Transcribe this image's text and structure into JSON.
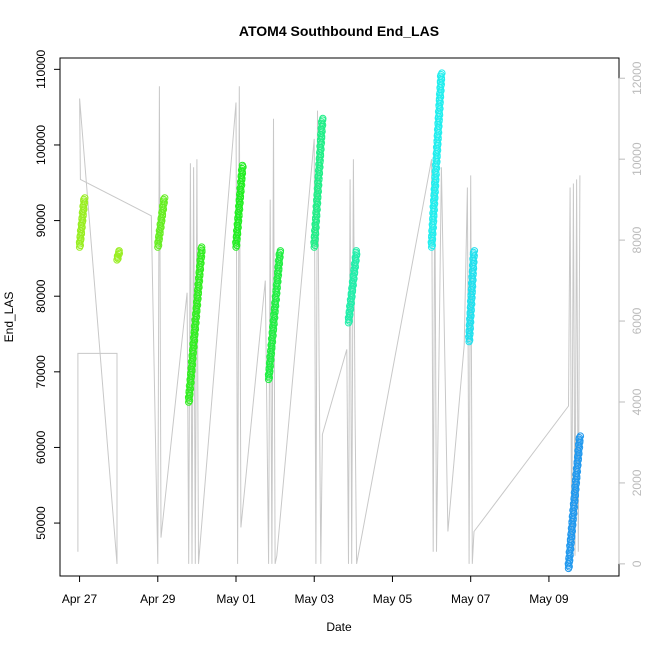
{
  "chart_data": {
    "type": "scatter",
    "title": "ATOM4 Southbound End_LAS",
    "xlabel": "Date",
    "ylabel": "End_LAS",
    "xlim": [
      "2017-04-26T12:00",
      "2017-05-10T19:00"
    ],
    "ylim": [
      43000,
      111500
    ],
    "y2lim": [
      -300,
      12500
    ],
    "x_ticks": [
      {
        "date": "2017-04-27",
        "label": "Apr 27"
      },
      {
        "date": "2017-04-29",
        "label": "Apr 29"
      },
      {
        "date": "2017-05-01",
        "label": "May 01"
      },
      {
        "date": "2017-05-03",
        "label": "May 03"
      },
      {
        "date": "2017-05-05",
        "label": "May 05"
      },
      {
        "date": "2017-05-07",
        "label": "May 07"
      },
      {
        "date": "2017-05-09",
        "label": "May 09"
      }
    ],
    "y_ticks": [
      {
        "value": 50000,
        "label": "50000"
      },
      {
        "value": 60000,
        "label": "60000"
      },
      {
        "value": 70000,
        "label": "70000"
      },
      {
        "value": 80000,
        "label": "80000"
      },
      {
        "value": 90000,
        "label": "90000"
      },
      {
        "value": 100000,
        "label": "100000"
      },
      {
        "value": 110000,
        "label": "110000"
      }
    ],
    "y2_ticks": [
      {
        "value": 0,
        "label": "0"
      },
      {
        "value": 2000,
        "label": "2000"
      },
      {
        "value": 4000,
        "label": "4000"
      },
      {
        "value": 6000,
        "label": "6000"
      },
      {
        "value": 8000,
        "label": "8000"
      },
      {
        "value": 10000,
        "label": "10000"
      },
      {
        "value": 12000,
        "label": "12000"
      }
    ],
    "grid": false,
    "legend": "none",
    "point_series": [
      {
        "start": "2017-04-27T00:00",
        "end": "2017-04-27T03:00",
        "y_start": 86500,
        "y_end": 93000,
        "color": "#99ee22"
      },
      {
        "start": "2017-04-27T23:00",
        "end": "2017-04-28T00:30",
        "y_start": 84800,
        "y_end": 86000,
        "color": "#99ee22"
      },
      {
        "start": "2017-04-29T00:00",
        "end": "2017-04-29T04:00",
        "y_start": 86500,
        "y_end": 93000,
        "color": "#66ee22"
      },
      {
        "start": "2017-04-29T19:00",
        "end": "2017-04-30T03:00",
        "y_start": 66000,
        "y_end": 86500,
        "color": "#33ee22"
      },
      {
        "start": "2017-05-01T00:00",
        "end": "2017-05-01T04:00",
        "y_start": 86500,
        "y_end": 97300,
        "color": "#22ee22"
      },
      {
        "start": "2017-05-01T20:00",
        "end": "2017-05-02T03:00",
        "y_start": 69000,
        "y_end": 86000,
        "color": "#22ee44"
      },
      {
        "start": "2017-05-03T00:00",
        "end": "2017-05-03T05:00",
        "y_start": 86500,
        "y_end": 103500,
        "color": "#22ee88"
      },
      {
        "start": "2017-05-03T21:00",
        "end": "2017-05-04T02:00",
        "y_start": 76500,
        "y_end": 86000,
        "color": "#22eeaa"
      },
      {
        "start": "2017-05-06T00:00",
        "end": "2017-05-06T06:00",
        "y_start": 86500,
        "y_end": 109500,
        "color": "#22eeee"
      },
      {
        "start": "2017-05-06T23:00",
        "end": "2017-05-07T02:00",
        "y_start": 74000,
        "y_end": 86000,
        "color": "#22e0ee"
      },
      {
        "start": "2017-05-09T12:00",
        "end": "2017-05-09T19:00",
        "y_start": 44000,
        "y_end": 61500,
        "color": "#2299ee"
      }
    ],
    "secondary_line": {
      "color": "#c8c8c8",
      "points": [
        [
          "2017-04-26T23:00",
          300
        ],
        [
          "2017-04-26T23:00",
          5200
        ],
        [
          "2017-04-27T23:00",
          5200
        ],
        [
          "2017-04-27T23:00",
          0
        ],
        [
          "2017-04-27T00:00",
          11500
        ],
        [
          "2017-04-27T00:30",
          9500
        ],
        [
          "2017-04-28T20:00",
          8600
        ],
        [
          "2017-04-29T00:00",
          0
        ],
        [
          "2017-04-29T01:00",
          11800
        ],
        [
          "2017-04-29T02:00",
          650
        ],
        [
          "2017-04-29T18:00",
          6700
        ],
        [
          "2017-04-29T19:00",
          0
        ],
        [
          "2017-04-29T20:00",
          9900
        ],
        [
          "2017-04-29T21:00",
          0
        ],
        [
          "2017-04-29T22:00",
          9800
        ],
        [
          "2017-04-29T23:00",
          0
        ],
        [
          "2017-04-30T00:00",
          10000
        ],
        [
          "2017-04-30T01:00",
          0
        ],
        [
          "2017-05-01T00:00",
          11400
        ],
        [
          "2017-05-01T01:00",
          0
        ],
        [
          "2017-05-01T02:00",
          11800
        ],
        [
          "2017-05-01T03:00",
          900
        ],
        [
          "2017-05-01T18:00",
          7000
        ],
        [
          "2017-05-01T20:00",
          0
        ],
        [
          "2017-05-01T21:00",
          9000
        ],
        [
          "2017-05-01T22:00",
          0
        ],
        [
          "2017-05-01T23:00",
          11000
        ],
        [
          "2017-05-02T00:00",
          0
        ],
        [
          "2017-05-02T01:00",
          200
        ],
        [
          "2017-05-03T00:00",
          10500
        ],
        [
          "2017-05-03T01:00",
          0
        ],
        [
          "2017-05-03T02:00",
          11200
        ],
        [
          "2017-05-03T03:00",
          5000
        ],
        [
          "2017-05-03T04:00",
          0
        ],
        [
          "2017-05-03T05:00",
          3200
        ],
        [
          "2017-05-03T20:00",
          5300
        ],
        [
          "2017-05-03T21:00",
          0
        ],
        [
          "2017-05-03T22:00",
          9500
        ],
        [
          "2017-05-03T23:00",
          0
        ],
        [
          "2017-05-04T00:00",
          10000
        ],
        [
          "2017-05-04T01:00",
          3900
        ],
        [
          "2017-05-04T02:00",
          0
        ],
        [
          "2017-05-06T00:00",
          10000
        ],
        [
          "2017-05-06T01:00",
          300
        ],
        [
          "2017-05-06T02:00",
          9700
        ],
        [
          "2017-05-06T03:00",
          300
        ],
        [
          "2017-05-06T06:00",
          9800
        ],
        [
          "2017-05-06T10:00",
          800
        ],
        [
          "2017-05-06T20:00",
          5400
        ],
        [
          "2017-05-06T22:00",
          9300
        ],
        [
          "2017-05-06T23:00",
          0
        ],
        [
          "2017-05-07T00:00",
          9600
        ],
        [
          "2017-05-07T01:00",
          0
        ],
        [
          "2017-05-07T02:00",
          800
        ],
        [
          "2017-05-09T12:00",
          3900
        ],
        [
          "2017-05-09T13:00",
          9300
        ],
        [
          "2017-05-09T14:00",
          200
        ],
        [
          "2017-05-09T15:00",
          9400
        ],
        [
          "2017-05-09T16:00",
          200
        ],
        [
          "2017-05-09T17:00",
          9500
        ],
        [
          "2017-05-09T18:00",
          300
        ],
        [
          "2017-05-09T19:00",
          9600
        ]
      ]
    }
  }
}
